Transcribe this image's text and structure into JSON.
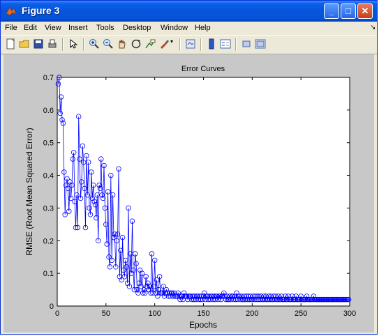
{
  "window": {
    "title": "Figure 3"
  },
  "menu": {
    "items": [
      {
        "label": "File",
        "hot": "F"
      },
      {
        "label": "Edit",
        "hot": "E"
      },
      {
        "label": "View",
        "hot": "V"
      },
      {
        "label": "Insert",
        "hot": "I"
      },
      {
        "label": "Tools",
        "hot": "T"
      },
      {
        "label": "Desktop",
        "hot": "D"
      },
      {
        "label": "Window",
        "hot": "W"
      },
      {
        "label": "Help",
        "hot": "H"
      }
    ]
  },
  "toolbar": {
    "buttons": [
      "new-figure-icon",
      "open-file-icon",
      "save-icon",
      "print-icon",
      "pointer-icon",
      "zoom-in-icon",
      "zoom-out-icon",
      "pan-icon",
      "rotate-3d-icon",
      "data-cursor-icon",
      "brush-icon",
      "link-plot-icon",
      "colorbar-icon",
      "legend-icon",
      "hide-plot-tools-icon",
      "show-plot-tools-icon"
    ]
  },
  "colors": {
    "plot_line": "#0000ff",
    "figure_bg": "#c8c8c8",
    "titlebar": "#0654dc"
  },
  "chart_data": {
    "type": "line",
    "title": "Error Curves",
    "xlabel": "Epochs",
    "ylabel": "RMSE (Root Mean Squared Error)",
    "xlim": [
      0,
      300
    ],
    "ylim": [
      0,
      0.7
    ],
    "xticks": [
      0,
      50,
      100,
      150,
      200,
      250,
      300
    ],
    "yticks": [
      0,
      0.1,
      0.2,
      0.3,
      0.4,
      0.5,
      0.6,
      0.7
    ],
    "marker": "circle",
    "grid": false,
    "series": [
      {
        "values": [
          0.68,
          0.7,
          0.59,
          0.64,
          0.57,
          0.56,
          0.41,
          0.28,
          0.37,
          0.39,
          0.36,
          0.29,
          0.38,
          0.33,
          0.37,
          0.45,
          0.47,
          0.32,
          0.24,
          0.34,
          0.24,
          0.58,
          0.45,
          0.33,
          0.38,
          0.49,
          0.44,
          0.36,
          0.24,
          0.46,
          0.34,
          0.44,
          0.3,
          0.28,
          0.41,
          0.33,
          0.37,
          0.32,
          0.31,
          0.27,
          0.34,
          0.2,
          0.37,
          0.36,
          0.45,
          0.34,
          0.33,
          0.43,
          0.3,
          0.25,
          0.19,
          0.35,
          0.15,
          0.12,
          0.4,
          0.14,
          0.34,
          0.21,
          0.22,
          0.12,
          0.2,
          0.22,
          0.42,
          0.09,
          0.17,
          0.08,
          0.21,
          0.11,
          0.09,
          0.14,
          0.12,
          0.07,
          0.3,
          0.06,
          0.16,
          0.1,
          0.26,
          0.11,
          0.05,
          0.16,
          0.13,
          0.05,
          0.04,
          0.07,
          0.11,
          0.06,
          0.1,
          0.04,
          0.05,
          0.04,
          0.09,
          0.06,
          0.07,
          0.05,
          0.06,
          0.04,
          0.16,
          0.04,
          0.06,
          0.14,
          0.04,
          0.08,
          0.03,
          0.05,
          0.09,
          0.04,
          0.04,
          0.04,
          0.06,
          0.03,
          0.04,
          0.05,
          0.04,
          0.03,
          0.04,
          0.03,
          0.04,
          0.04,
          0.03,
          0.04,
          0.03,
          0.03,
          0.03,
          0.04,
          0.03,
          0.02,
          0.03,
          0.03,
          0.02,
          0.04,
          0.03,
          0.03,
          0.03,
          0.02,
          0.03,
          0.03,
          0.03,
          0.02,
          0.03,
          0.02,
          0.03,
          0.02,
          0.03,
          0.03,
          0.02,
          0.03,
          0.02,
          0.03,
          0.02,
          0.03,
          0.04,
          0.02,
          0.03,
          0.03,
          0.02,
          0.03,
          0.02,
          0.03,
          0.03,
          0.02,
          0.03,
          0.02,
          0.03,
          0.03,
          0.02,
          0.03,
          0.03,
          0.02,
          0.03,
          0.03,
          0.04,
          0.03,
          0.02,
          0.03,
          0.02,
          0.02,
          0.03,
          0.02,
          0.03,
          0.03,
          0.02,
          0.03,
          0.02,
          0.04,
          0.02,
          0.03,
          0.03,
          0.02,
          0.03,
          0.02,
          0.02,
          0.03,
          0.02,
          0.03,
          0.02,
          0.03,
          0.02,
          0.03,
          0.02,
          0.02,
          0.03,
          0.02,
          0.03,
          0.02,
          0.03,
          0.02,
          0.03,
          0.02,
          0.03,
          0.02,
          0.02,
          0.03,
          0.02,
          0.03,
          0.02,
          0.02,
          0.03,
          0.02,
          0.03,
          0.02,
          0.02,
          0.03,
          0.02,
          0.03,
          0.02,
          0.02,
          0.03,
          0.02,
          0.02,
          0.03,
          0.02,
          0.02,
          0.02,
          0.03,
          0.02,
          0.02,
          0.03,
          0.02,
          0.02,
          0.02,
          0.03,
          0.02,
          0.02,
          0.02,
          0.03,
          0.02,
          0.02,
          0.02,
          0.02,
          0.03,
          0.02,
          0.02,
          0.02,
          0.02,
          0.02,
          0.03,
          0.02,
          0.02,
          0.02,
          0.02,
          0.02,
          0.02,
          0.03,
          0.02,
          0.02,
          0.02,
          0.02,
          0.02,
          0.02,
          0.02,
          0.02,
          0.02,
          0.02,
          0.02,
          0.02,
          0.02,
          0.02,
          0.02,
          0.02,
          0.02,
          0.02,
          0.02,
          0.02,
          0.02,
          0.02,
          0.02,
          0.02,
          0.02,
          0.02,
          0.02,
          0.02,
          0.02,
          0.02,
          0.02,
          0.02,
          0.02,
          0.02,
          0.02,
          0.02
        ]
      }
    ]
  }
}
